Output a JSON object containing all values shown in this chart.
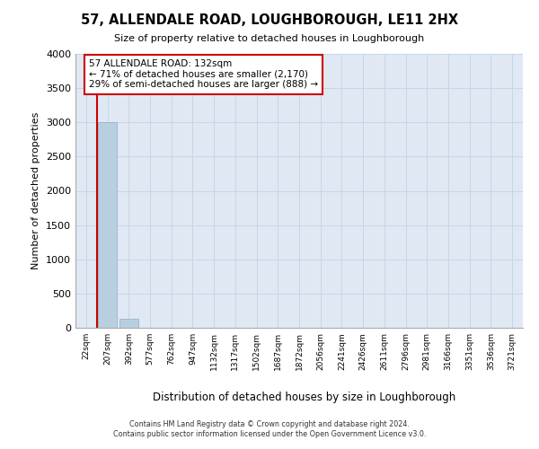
{
  "title": "57, ALLENDALE ROAD, LOUGHBOROUGH, LE11 2HX",
  "subtitle": "Size of property relative to detached houses in Loughborough",
  "xlabel": "Distribution of detached houses by size in Loughborough",
  "ylabel": "Number of detached properties",
  "bin_labels": [
    "22sqm",
    "207sqm",
    "392sqm",
    "577sqm",
    "762sqm",
    "947sqm",
    "1132sqm",
    "1317sqm",
    "1502sqm",
    "1687sqm",
    "1872sqm",
    "2056sqm",
    "2241sqm",
    "2426sqm",
    "2611sqm",
    "2796sqm",
    "2981sqm",
    "3166sqm",
    "3351sqm",
    "3536sqm",
    "3721sqm"
  ],
  "bar_heights": [
    0,
    3000,
    130,
    5,
    2,
    1,
    1,
    0,
    0,
    0,
    0,
    0,
    0,
    0,
    0,
    0,
    0,
    0,
    0,
    0,
    0
  ],
  "bar_color": "#b8cfe0",
  "bar_edge_color": "#8aafc8",
  "annotation_line1": "57 ALLENDALE ROAD: 132sqm",
  "annotation_line2": "← 71% of detached houses are smaller (2,170)",
  "annotation_line3": "29% of semi-detached houses are larger (888) →",
  "red_line_color": "#cc0000",
  "annotation_box_edgecolor": "#cc0000",
  "ylim": [
    0,
    4000
  ],
  "yticks": [
    0,
    500,
    1000,
    1500,
    2000,
    2500,
    3000,
    3500,
    4000
  ],
  "grid_color": "#c8d4e8",
  "background_color": "#e0e8f4",
  "footer_line1": "Contains HM Land Registry data © Crown copyright and database right 2024.",
  "footer_line2": "Contains public sector information licensed under the Open Government Licence v3.0."
}
